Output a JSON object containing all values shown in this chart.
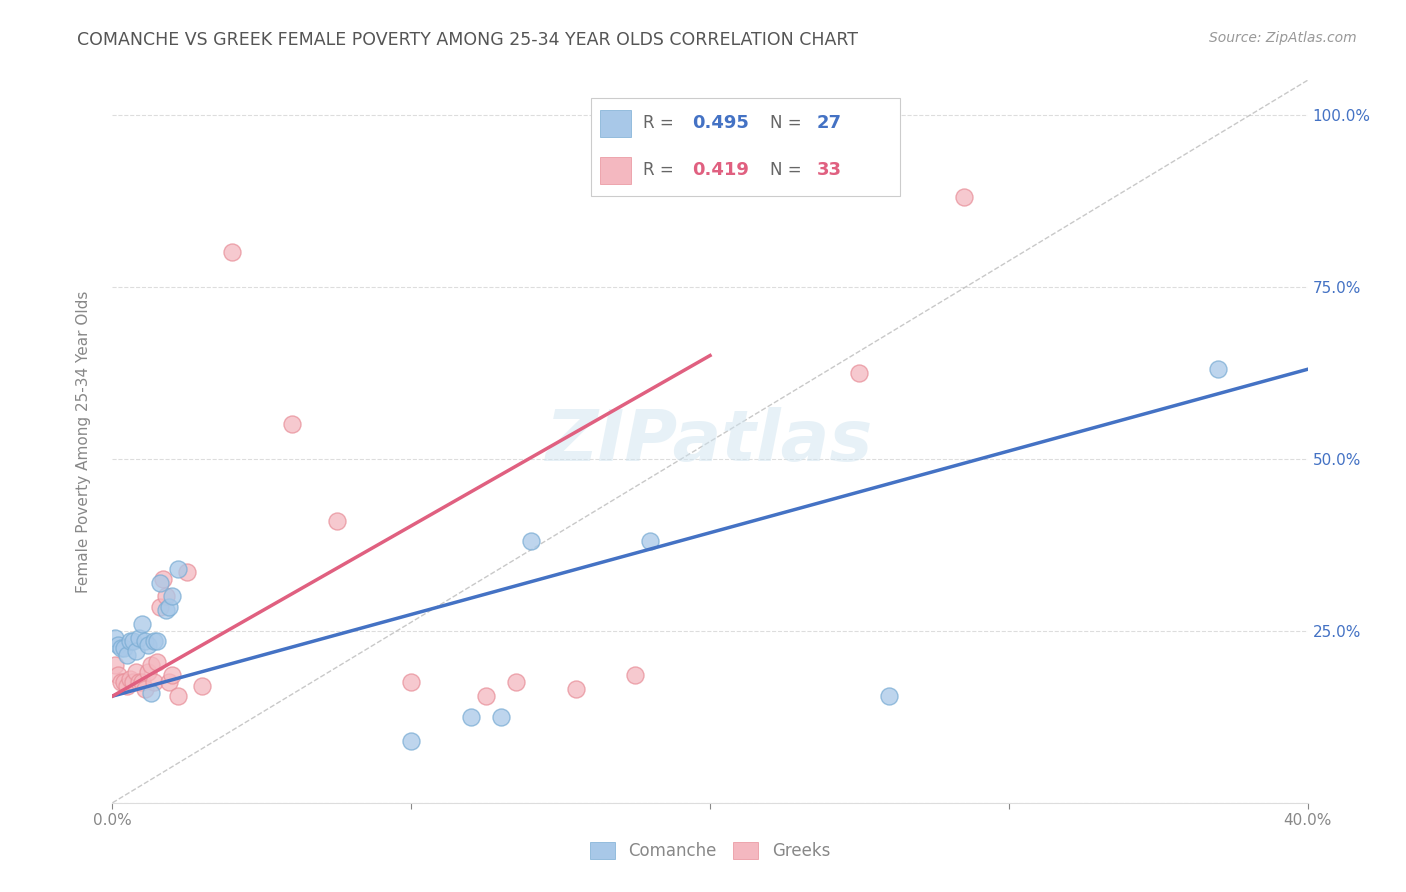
{
  "title": "COMANCHE VS GREEK FEMALE POVERTY AMONG 25-34 YEAR OLDS CORRELATION CHART",
  "source": "Source: ZipAtlas.com",
  "ylabel": "Female Poverty Among 25-34 Year Olds",
  "xlim": [
    0.0,
    0.4
  ],
  "ylim": [
    0.0,
    1.05
  ],
  "xtick_positions": [
    0.0,
    0.1,
    0.2,
    0.3,
    0.4
  ],
  "xticklabels": [
    "0.0%",
    "",
    "",
    "",
    "40.0%"
  ],
  "ytick_positions": [
    0.0,
    0.25,
    0.5,
    0.75,
    1.0
  ],
  "ytick_labels_right": [
    "",
    "25.0%",
    "50.0%",
    "75.0%",
    "100.0%"
  ],
  "comanche_R": "0.495",
  "comanche_N": "27",
  "greek_R": "0.419",
  "greek_N": "33",
  "comanche_color": "#a8c8e8",
  "greek_color": "#f4b8c0",
  "comanche_edge_color": "#7badd4",
  "greek_edge_color": "#e8909a",
  "comanche_line_color": "#4472c4",
  "greek_line_color": "#e06080",
  "diagonal_color": "#bbbbbb",
  "right_tick_color": "#4472c4",
  "comanche_x": [
    0.001,
    0.002,
    0.003,
    0.004,
    0.005,
    0.006,
    0.007,
    0.008,
    0.009,
    0.01,
    0.011,
    0.012,
    0.013,
    0.014,
    0.015,
    0.016,
    0.018,
    0.019,
    0.02,
    0.022,
    0.1,
    0.12,
    0.13,
    0.14,
    0.18,
    0.26,
    0.37
  ],
  "comanche_y": [
    0.24,
    0.23,
    0.225,
    0.225,
    0.215,
    0.235,
    0.235,
    0.22,
    0.24,
    0.26,
    0.235,
    0.23,
    0.16,
    0.235,
    0.235,
    0.32,
    0.28,
    0.285,
    0.3,
    0.34,
    0.09,
    0.125,
    0.125,
    0.38,
    0.38,
    0.155,
    0.63
  ],
  "greek_x": [
    0.001,
    0.002,
    0.003,
    0.004,
    0.005,
    0.006,
    0.007,
    0.008,
    0.009,
    0.01,
    0.011,
    0.012,
    0.013,
    0.014,
    0.015,
    0.016,
    0.017,
    0.018,
    0.019,
    0.02,
    0.022,
    0.025,
    0.03,
    0.04,
    0.06,
    0.075,
    0.1,
    0.125,
    0.135,
    0.155,
    0.175,
    0.25,
    0.285
  ],
  "greek_y": [
    0.2,
    0.185,
    0.175,
    0.175,
    0.17,
    0.18,
    0.175,
    0.19,
    0.175,
    0.175,
    0.165,
    0.19,
    0.2,
    0.175,
    0.205,
    0.285,
    0.325,
    0.3,
    0.175,
    0.185,
    0.155,
    0.335,
    0.17,
    0.8,
    0.55,
    0.41,
    0.175,
    0.155,
    0.175,
    0.165,
    0.185,
    0.625,
    0.88
  ],
  "comanche_line_x0": 0.0,
  "comanche_line_y0": 0.155,
  "comanche_line_x1": 0.4,
  "comanche_line_y1": 0.63,
  "greek_line_x0": 0.0,
  "greek_line_y0": 0.155,
  "greek_line_x1": 0.2,
  "greek_line_y1": 0.65,
  "bg_color": "#ffffff",
  "grid_color": "#dddddd",
  "title_color": "#555555",
  "axis_color": "#888888",
  "legend_border_color": "#cccccc"
}
